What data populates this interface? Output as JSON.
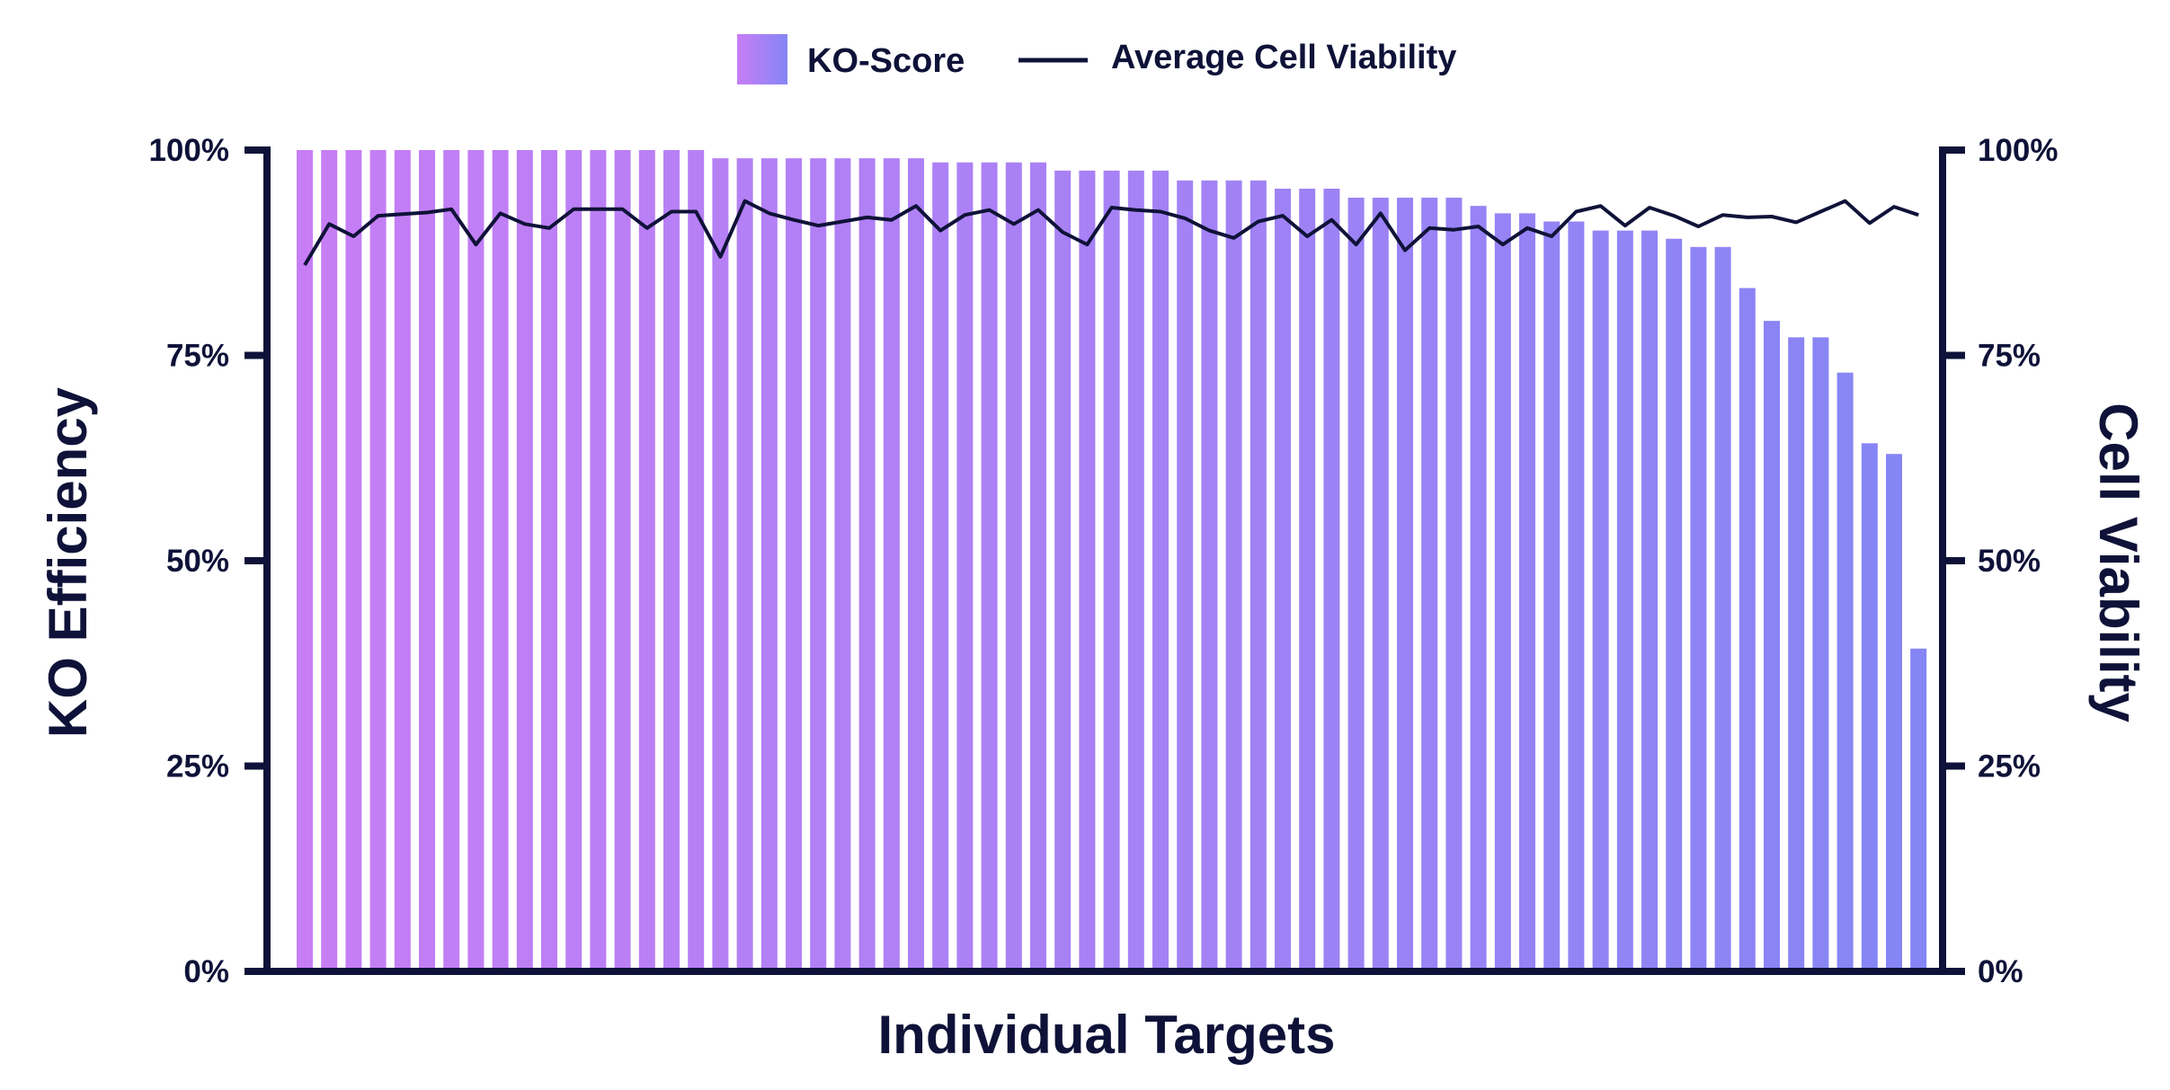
{
  "chart_data": {
    "type": "bar",
    "xlabel": "Individual Targets",
    "ylabel": "KO Efficiency",
    "y2label": "Cell Viability",
    "ylim": [
      0,
      100
    ],
    "y2lim": [
      0,
      100
    ],
    "yticks": [
      "0%",
      "25%",
      "50%",
      "75%",
      "100%"
    ],
    "y2ticks": [
      "0%",
      "25%",
      "50%",
      "75%",
      "100%"
    ],
    "legend": {
      "position": "top-center",
      "bars_label": "KO-Score",
      "line_label": "Average Cell Viability"
    },
    "colors": {
      "bar_start": "#c77ef5",
      "bar_end": "#8585f5",
      "line": "#0f1238",
      "axis": "#0f1238"
    },
    "series": [
      {
        "name": "KO-Score",
        "type": "bar",
        "values": [
          100,
          100,
          100,
          100,
          100,
          100,
          100,
          100,
          100,
          100,
          100,
          100,
          100,
          100,
          100,
          100,
          100,
          99,
          99,
          99,
          99,
          99,
          99,
          99,
          99,
          99,
          98.5,
          98.5,
          98.5,
          98.5,
          98.5,
          97.5,
          97.5,
          97.5,
          97.5,
          97.5,
          96.3,
          96.3,
          96.3,
          96.3,
          95.3,
          95.3,
          95.3,
          94.2,
          94.2,
          94.2,
          94.2,
          94.2,
          93.2,
          92.3,
          92.3,
          91.3,
          91.3,
          90.2,
          90.2,
          90.2,
          89.2,
          88.2,
          88.2,
          83.2,
          79.2,
          77.2,
          77.2,
          72.9,
          64.3,
          63,
          39.3
        ]
      },
      {
        "name": "Average Cell Viability",
        "type": "line",
        "values": [
          86,
          91,
          89.5,
          92,
          92.2,
          92.4,
          92.8,
          88.5,
          92.3,
          91,
          90.5,
          92.8,
          92.8,
          92.8,
          90.5,
          92.5,
          92.5,
          87,
          93.8,
          92.3,
          91.5,
          90.8,
          91.3,
          91.8,
          91.5,
          93.2,
          90.2,
          92.1,
          92.7,
          91,
          92.7,
          90,
          88.5,
          93,
          92.7,
          92.5,
          91.7,
          90.2,
          89.3,
          91.3,
          92,
          89.5,
          91.5,
          88.5,
          92.3,
          87.8,
          90.5,
          90.3,
          90.7,
          88.5,
          90.5,
          89.5,
          92.5,
          93.2,
          90.8,
          93,
          92,
          90.7,
          92.1,
          91.8,
          91.9,
          91.2,
          92.5,
          93.8,
          91.1,
          93.1,
          92.1
        ]
      }
    ]
  }
}
